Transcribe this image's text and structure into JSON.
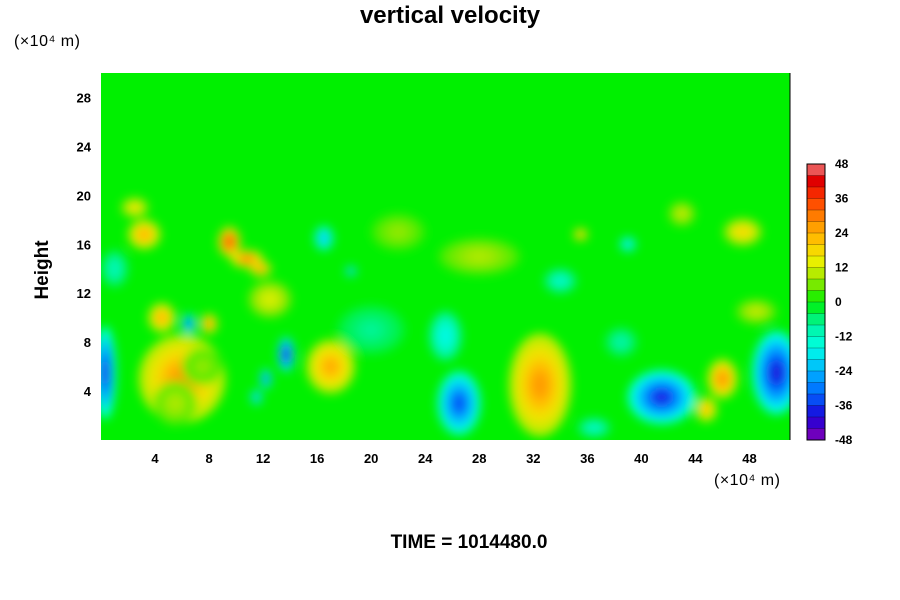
{
  "chart_data": {
    "type": "heatmap",
    "title": "vertical velocity",
    "ylabel": "Height",
    "xlabel": "",
    "x_unit": "(×10⁴ m)",
    "y_unit": "(×10⁴ m)",
    "footer": "TIME = 1014480.0",
    "xlim": [
      0,
      51
    ],
    "ylim": [
      0,
      30
    ],
    "x_ticks": [
      4,
      8,
      12,
      16,
      20,
      24,
      28,
      32,
      36,
      40,
      44,
      48
    ],
    "y_ticks": [
      4,
      8,
      12,
      16,
      20,
      24,
      28
    ],
    "colorbar": {
      "min": -48,
      "max": 48,
      "step": 4,
      "labels": [
        48,
        36,
        24,
        12,
        0,
        -12,
        -24,
        -36,
        -48
      ]
    },
    "features": [
      {
        "x": 6,
        "y": 5,
        "rx": 3.2,
        "ry": 3.6,
        "value": 28
      },
      {
        "x": 5.5,
        "y": 3,
        "rx": 1.6,
        "ry": 1.8,
        "value": 10
      },
      {
        "x": 7.5,
        "y": 6,
        "rx": 1.5,
        "ry": 1.5,
        "value": 8
      },
      {
        "x": 4.5,
        "y": 10,
        "rx": 1,
        "ry": 1.2,
        "value": 26
      },
      {
        "x": 6.5,
        "y": 9.5,
        "rx": 0.5,
        "ry": 0.8,
        "value": -38
      },
      {
        "x": 8,
        "y": 9.5,
        "rx": 0.6,
        "ry": 0.8,
        "value": 30
      },
      {
        "x": 3.2,
        "y": 16.8,
        "rx": 1.2,
        "ry": 1.2,
        "value": 26
      },
      {
        "x": 2.5,
        "y": 19,
        "rx": 1,
        "ry": 0.8,
        "value": 18
      },
      {
        "x": 0.3,
        "y": 5.5,
        "rx": 0.8,
        "ry": 3.8,
        "value": -40
      },
      {
        "x": 9.5,
        "y": 16.2,
        "rx": 0.8,
        "ry": 1.2,
        "value": 40
      },
      {
        "x": 10.8,
        "y": 14.8,
        "rx": 1.2,
        "ry": 0.7,
        "value": 34
      },
      {
        "x": 11.8,
        "y": 14,
        "rx": 0.8,
        "ry": 0.6,
        "value": 30
      },
      {
        "x": 12.5,
        "y": 11.5,
        "rx": 1.6,
        "ry": 1.5,
        "value": 14
      },
      {
        "x": 13.7,
        "y": 7,
        "rx": 0.6,
        "ry": 1.4,
        "value": -44
      },
      {
        "x": 12.2,
        "y": 5,
        "rx": 0.4,
        "ry": 0.8,
        "value": -36
      },
      {
        "x": 11.5,
        "y": 3.5,
        "rx": 0.4,
        "ry": 0.6,
        "value": -30
      },
      {
        "x": 17,
        "y": 6,
        "rx": 1.8,
        "ry": 2.2,
        "value": 26
      },
      {
        "x": 16.5,
        "y": 16.5,
        "rx": 0.7,
        "ry": 1,
        "value": -26
      },
      {
        "x": 18.5,
        "y": 13.8,
        "rx": 0.4,
        "ry": 0.4,
        "value": -30
      },
      {
        "x": 26.5,
        "y": 3,
        "rx": 1.6,
        "ry": 2.6,
        "value": -36
      },
      {
        "x": 25.5,
        "y": 8.5,
        "rx": 1.2,
        "ry": 2,
        "value": -18
      },
      {
        "x": 32.5,
        "y": 4.5,
        "rx": 2.3,
        "ry": 4.2,
        "value": 28
      },
      {
        "x": 41.5,
        "y": 3.5,
        "rx": 2.5,
        "ry": 2.2,
        "value": -40
      },
      {
        "x": 46,
        "y": 5,
        "rx": 1.1,
        "ry": 1.6,
        "value": 30
      },
      {
        "x": 44.8,
        "y": 2.5,
        "rx": 0.8,
        "ry": 1,
        "value": 24
      },
      {
        "x": 50,
        "y": 5.5,
        "rx": 1.8,
        "ry": 3.4,
        "value": -42
      },
      {
        "x": 36.5,
        "y": 1,
        "rx": 1.2,
        "ry": 0.8,
        "value": -14
      },
      {
        "x": 38.5,
        "y": 8,
        "rx": 1.2,
        "ry": 1.2,
        "value": -10
      },
      {
        "x": 48.5,
        "y": 10.5,
        "rx": 1.5,
        "ry": 1,
        "value": 12
      },
      {
        "x": 47.5,
        "y": 17,
        "rx": 1.4,
        "ry": 1.1,
        "value": 20
      },
      {
        "x": 35.5,
        "y": 16.8,
        "rx": 0.5,
        "ry": 0.5,
        "value": 26
      },
      {
        "x": 39,
        "y": 16,
        "rx": 0.6,
        "ry": 0.6,
        "value": -22
      },
      {
        "x": 28,
        "y": 15,
        "rx": 3,
        "ry": 1.5,
        "value": 10
      },
      {
        "x": 22,
        "y": 17,
        "rx": 2,
        "ry": 1.5,
        "value": 8
      },
      {
        "x": 34,
        "y": 13,
        "rx": 1.2,
        "ry": 1,
        "value": -14
      },
      {
        "x": 20,
        "y": 9,
        "rx": 2.5,
        "ry": 2,
        "value": -8
      },
      {
        "x": 43,
        "y": 18.5,
        "rx": 1,
        "ry": 1,
        "value": 12
      },
      {
        "x": 1,
        "y": 14,
        "rx": 1,
        "ry": 1.5,
        "value": -12
      }
    ]
  }
}
